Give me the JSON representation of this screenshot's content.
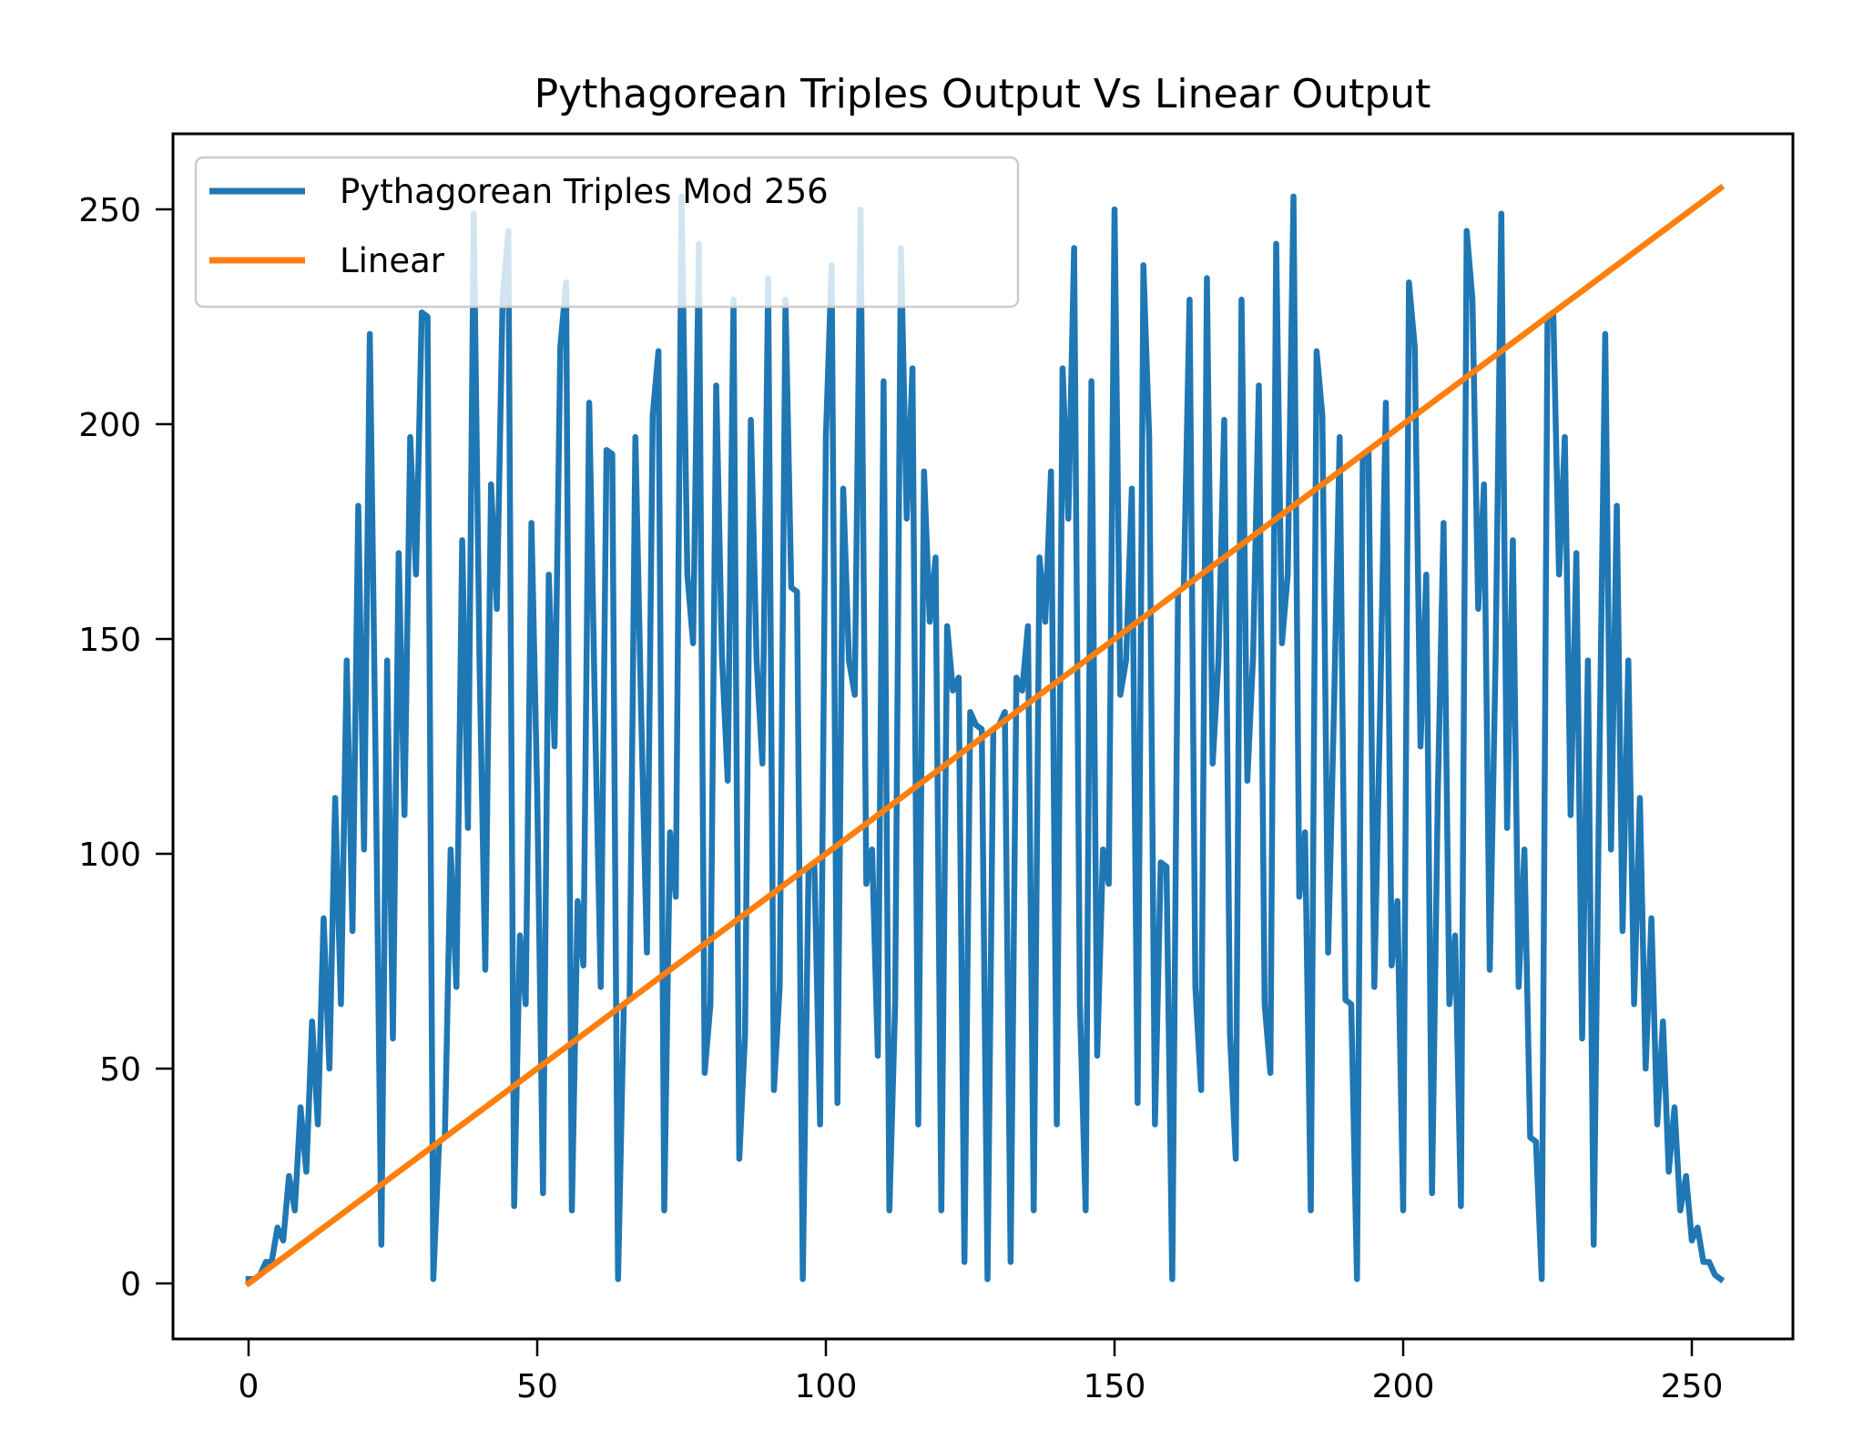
{
  "chart_data": {
    "type": "line",
    "title": "Pythagorean Triples Output Vs Linear Output",
    "xlabel": "",
    "ylabel": "",
    "xlim": [
      -12.75,
      267.75
    ],
    "ylim": [
      -12.75,
      267.75
    ],
    "grid": false,
    "legend_position": "upper left",
    "x_ticks": [
      0,
      50,
      100,
      150,
      200,
      250
    ],
    "y_ticks": [
      0,
      50,
      100,
      150,
      200,
      250
    ],
    "x": "0..255 (integer step 1)",
    "series": [
      {
        "name": "Pythagorean Triples Mod 256",
        "color": "#1f77b4",
        "values": [
          1,
          1,
          2,
          5,
          5,
          13,
          10,
          25,
          17,
          41,
          26,
          61,
          37,
          85,
          50,
          113,
          65,
          145,
          82,
          181,
          101,
          221,
          122,
          9,
          145,
          57,
          170,
          109,
          197,
          165,
          226,
          225,
          1,
          33,
          34,
          101,
          69,
          173,
          106,
          249,
          145,
          73,
          186,
          157,
          229,
          245,
          18,
          81,
          65,
          177,
          114,
          21,
          165,
          125,
          218,
          233,
          17,
          89,
          74,
          205,
          133,
          69,
          194,
          193,
          1,
          65,
          66,
          197,
          133,
          77,
          202,
          217,
          17,
          105,
          90,
          253,
          165,
          149,
          242,
          49,
          65,
          209,
          146,
          117,
          229,
          29,
          58,
          201,
          145,
          121,
          234,
          45,
          69,
          229,
          162,
          161,
          1,
          97,
          98,
          37,
          197,
          237,
          42,
          185,
          145,
          137,
          250,
          93,
          101,
          53,
          210,
          17,
          65,
          241,
          178,
          213,
          37,
          189,
          154,
          169,
          17,
          153,
          138,
          141,
          5,
          133,
          130,
          129,
          1,
          129,
          130,
          133,
          5,
          141,
          138,
          153,
          17,
          169,
          154,
          189,
          37,
          213,
          178,
          241,
          65,
          17,
          210,
          53,
          101,
          93,
          250,
          137,
          145,
          185,
          42,
          237,
          197,
          37,
          98,
          97,
          1,
          161,
          162,
          229,
          69,
          45,
          234,
          121,
          145,
          201,
          58,
          29,
          229,
          117,
          146,
          209,
          65,
          49,
          242,
          149,
          165,
          253,
          90,
          105,
          17,
          217,
          202,
          77,
          133,
          197,
          66,
          65,
          1,
          193,
          194,
          69,
          133,
          205,
          74,
          89,
          17,
          233,
          218,
          125,
          165,
          21,
          114,
          177,
          65,
          81,
          18,
          245,
          229,
          157,
          186,
          73,
          145,
          249,
          106,
          173,
          69,
          101,
          34,
          33,
          1,
          225,
          226,
          165,
          197,
          109,
          170,
          57,
          145,
          9,
          122,
          221,
          101,
          181,
          82,
          145,
          65,
          113,
          50,
          85,
          37,
          61,
          26,
          41,
          17,
          25,
          10,
          13,
          5,
          5,
          2,
          1
        ]
      },
      {
        "name": "Linear",
        "color": "#ff7f0e",
        "values": "y = x for x in 0..255",
        "start": [
          0,
          0
        ],
        "end": [
          255,
          255
        ]
      }
    ]
  },
  "labels": {
    "title": "Pythagorean Triples Output Vs Linear Output",
    "legend": [
      "Pythagorean Triples Mod 256",
      "Linear"
    ],
    "x_ticks": [
      "0",
      "50",
      "100",
      "150",
      "200",
      "250"
    ],
    "y_ticks": [
      "0",
      "50",
      "100",
      "150",
      "200",
      "250"
    ]
  }
}
